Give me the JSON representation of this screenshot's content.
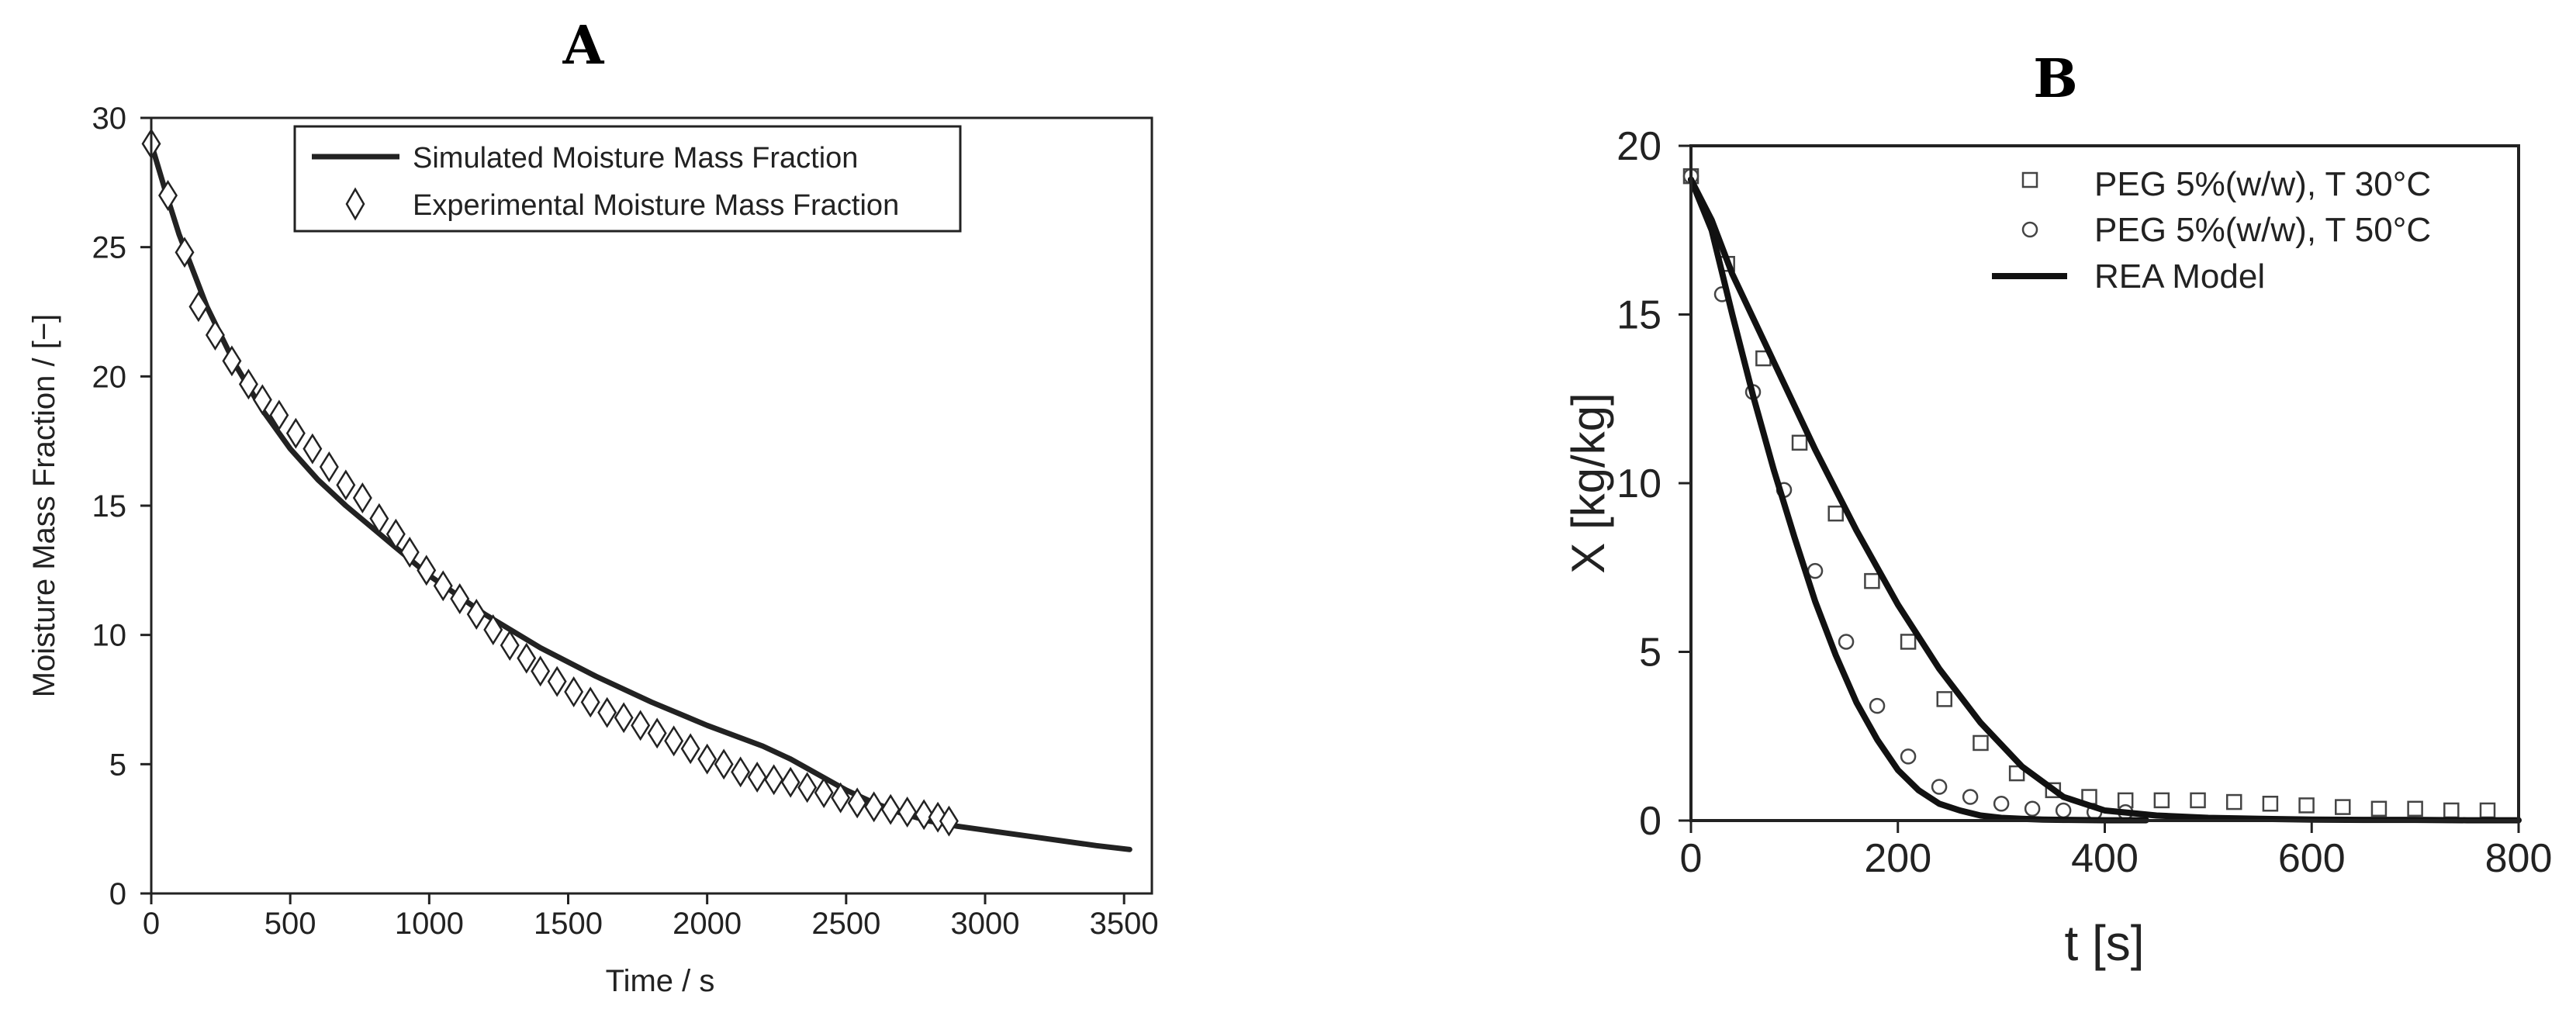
{
  "chart_data": [
    {
      "type": "line",
      "title": "A",
      "xlabel": "Time / s",
      "ylabel": "Moisture Mass Fraction / [−]",
      "xlim": [
        0,
        3600
      ],
      "ylim": [
        0,
        30
      ],
      "xticks": [
        0,
        500,
        1000,
        1500,
        2000,
        2500,
        3000,
        3500
      ],
      "yticks": [
        0,
        5,
        10,
        15,
        20,
        25,
        30
      ],
      "legend_position": "top-center",
      "series": [
        {
          "name": "Simulated Moisture Mass Fraction",
          "style": "line",
          "color": "#222222",
          "x": [
            0,
            50,
            100,
            200,
            300,
            400,
            500,
            600,
            700,
            800,
            900,
            1000,
            1200,
            1400,
            1600,
            1800,
            2000,
            2200,
            2300,
            2400,
            2500,
            2600,
            2700,
            2800,
            2900,
            3000,
            3200,
            3400,
            3520
          ],
          "y": [
            29.0,
            27.2,
            25.5,
            22.7,
            20.5,
            18.7,
            17.2,
            16.0,
            15.0,
            14.1,
            13.2,
            12.3,
            10.8,
            9.5,
            8.4,
            7.4,
            6.5,
            5.7,
            5.2,
            4.6,
            4.0,
            3.5,
            3.1,
            2.8,
            2.6,
            2.45,
            2.15,
            1.85,
            1.7
          ]
        },
        {
          "name": "Experimental Moisture Mass Fraction",
          "style": "marker-diamond",
          "color": "#222222",
          "x": [
            0,
            60,
            120,
            170,
            230,
            290,
            350,
            400,
            460,
            520,
            580,
            640,
            700,
            760,
            820,
            880,
            930,
            990,
            1050,
            1110,
            1170,
            1230,
            1290,
            1350,
            1400,
            1460,
            1520,
            1580,
            1640,
            1700,
            1760,
            1820,
            1880,
            1940,
            2000,
            2060,
            2120,
            2180,
            2240,
            2300,
            2360,
            2420,
            2480,
            2540,
            2600,
            2660,
            2720,
            2780,
            2830,
            2870
          ],
          "y": [
            29.0,
            27.0,
            24.8,
            22.7,
            21.6,
            20.6,
            19.7,
            19.1,
            18.5,
            17.8,
            17.2,
            16.5,
            15.8,
            15.3,
            14.5,
            13.9,
            13.2,
            12.5,
            11.9,
            11.4,
            10.8,
            10.2,
            9.6,
            9.1,
            8.6,
            8.2,
            7.8,
            7.4,
            7.0,
            6.8,
            6.5,
            6.2,
            5.9,
            5.6,
            5.2,
            5.0,
            4.7,
            4.5,
            4.4,
            4.3,
            4.1,
            3.9,
            3.7,
            3.5,
            3.35,
            3.25,
            3.15,
            3.05,
            2.95,
            2.8
          ]
        }
      ]
    },
    {
      "type": "line",
      "title": "B",
      "xlabel": "t [s]",
      "ylabel": "X [kg/kg]",
      "xlim": [
        0,
        800
      ],
      "ylim": [
        0,
        20
      ],
      "xticks": [
        0,
        200,
        400,
        600,
        800
      ],
      "yticks": [
        0,
        5,
        10,
        15,
        20
      ],
      "legend_position": "top-right",
      "series": [
        {
          "name": "PEG  5%(w/w), T 30°C",
          "style": "marker-square",
          "color": "#222222",
          "x": [
            0,
            35,
            70,
            105,
            140,
            175,
            210,
            245,
            280,
            315,
            350,
            385,
            420,
            455,
            490,
            525,
            560,
            595,
            630,
            665,
            700,
            735,
            770
          ],
          "y": [
            19.1,
            16.5,
            13.7,
            11.2,
            9.1,
            7.1,
            5.3,
            3.6,
            2.3,
            1.4,
            0.9,
            0.7,
            0.6,
            0.6,
            0.6,
            0.55,
            0.5,
            0.45,
            0.4,
            0.35,
            0.35,
            0.3,
            0.3
          ]
        },
        {
          "name": "PEG  5%(w/w), T 50°C",
          "style": "marker-circle",
          "color": "#222222",
          "x": [
            0,
            30,
            60,
            90,
            120,
            150,
            180,
            210,
            240,
            270,
            300,
            330,
            360,
            390,
            420
          ],
          "y": [
            19.1,
            15.6,
            12.7,
            9.8,
            7.4,
            5.3,
            3.4,
            1.9,
            1.0,
            0.7,
            0.5,
            0.35,
            0.3,
            0.25,
            0.25
          ]
        },
        {
          "name": "REA Model",
          "style": "line",
          "color": "#111111",
          "curves": [
            {
              "x": [
                0,
                20,
                40,
                60,
                80,
                100,
                120,
                140,
                160,
                180,
                200,
                220,
                240,
                260,
                280,
                300,
                320,
                340,
                360,
                400,
                440
              ],
              "y": [
                19.0,
                17.5,
                15.0,
                12.6,
                10.4,
                8.4,
                6.5,
                4.9,
                3.5,
                2.4,
                1.5,
                0.9,
                0.5,
                0.3,
                0.15,
                0.08,
                0.05,
                0.03,
                0.02,
                0.01,
                0.01
              ]
            },
            {
              "x": [
                0,
                20,
                40,
                80,
                120,
                160,
                200,
                240,
                280,
                320,
                360,
                400,
                450,
                500,
                550,
                600,
                650,
                700,
                750,
                800
              ],
              "y": [
                19.0,
                17.8,
                16.2,
                13.6,
                11.0,
                8.6,
                6.4,
                4.5,
                2.9,
                1.6,
                0.7,
                0.3,
                0.15,
                0.08,
                0.05,
                0.03,
                0.02,
                0.02,
                0.01,
                0.01
              ]
            }
          ]
        }
      ]
    }
  ]
}
